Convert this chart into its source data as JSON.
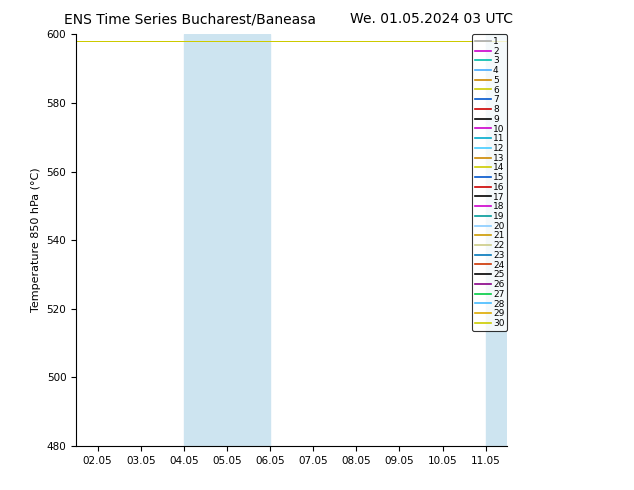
{
  "title_left": "ENS Time Series Bucharest/Baneasa",
  "title_right": "We. 01.05.2024 03 UTC",
  "ylabel": "Temperature 850 hPa (°C)",
  "ylim": [
    480,
    600
  ],
  "yticks": [
    480,
    500,
    520,
    540,
    560,
    580,
    600
  ],
  "xtick_labels": [
    "02.05",
    "03.05",
    "04.05",
    "05.05",
    "06.05",
    "07.05",
    "08.05",
    "09.05",
    "10.05",
    "11.05"
  ],
  "xtick_positions": [
    2,
    3,
    4,
    5,
    6,
    7,
    8,
    9,
    10,
    11
  ],
  "xlim": [
    1.5,
    11.5
  ],
  "shaded_regions": [
    {
      "xmin": 4.0,
      "xmax": 6.0,
      "color": "#cde4f0"
    },
    {
      "xmin": 11.0,
      "xmax": 11.5,
      "color": "#cde4f0"
    }
  ],
  "member_colors": [
    "#aaaaaa",
    "#cc00cc",
    "#00bbaa",
    "#44aaff",
    "#cc8800",
    "#cccc00",
    "#0055cc",
    "#cc0000",
    "#000000",
    "#cc00cc",
    "#00aacc",
    "#44ccff",
    "#cc8800",
    "#cccc00",
    "#0055cc",
    "#cc0000",
    "#000000",
    "#cc00cc",
    "#009999",
    "#88ccff",
    "#cc9900",
    "#cccc88",
    "#0077bb",
    "#cc3300",
    "#000000",
    "#880088",
    "#00cc44",
    "#44bbff",
    "#ddaa00",
    "#cccc00"
  ],
  "title_fontsize": 10,
  "axis_label_fontsize": 8,
  "tick_fontsize": 7.5,
  "legend_fontsize": 6.5,
  "bg_color": "#ffffff"
}
